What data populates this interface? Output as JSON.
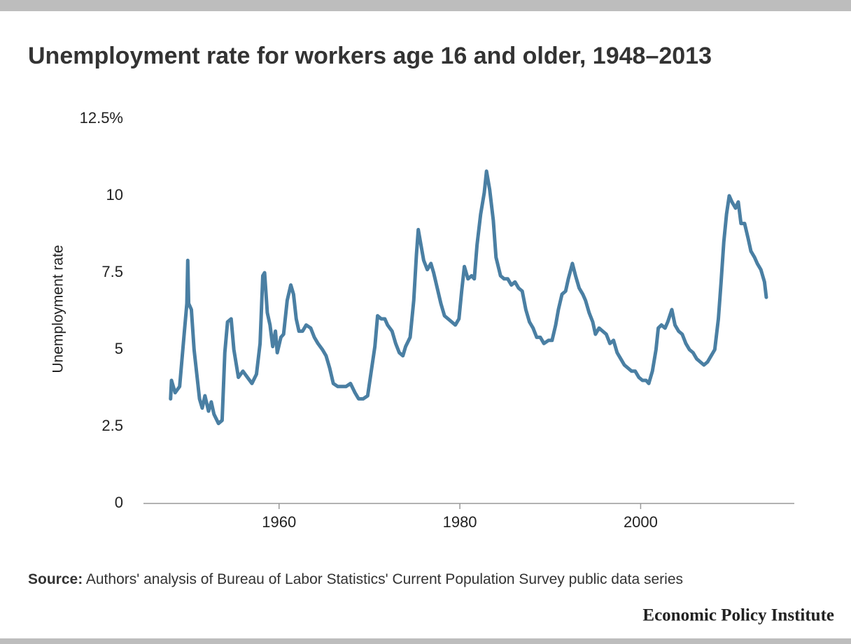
{
  "chart_data": {
    "type": "line",
    "title": "Unemployment rate for workers age 16 and older, 1948–2013",
    "y_label": "Unemployment rate",
    "source_label": "Source:",
    "source": "Authors' analysis of Bureau of Labor Statistics' Current Population Survey public data series",
    "credit": "Economic Policy Institute",
    "color": "#4a7fa3",
    "grid": false,
    "xlim": [
      1945,
      2017
    ],
    "xticks": [
      1960,
      1980,
      2000
    ],
    "ylim": [
      0,
      12.5
    ],
    "yticks": [
      0,
      2.5,
      5,
      7.5,
      10,
      {
        "value": 12.5,
        "label": "12.5%"
      }
    ],
    "x": [
      1948.0,
      1948.1,
      1948.5,
      1949.0,
      1949.5,
      1949.8,
      1949.9,
      1950.0,
      1950.3,
      1950.6,
      1950.9,
      1951.2,
      1951.5,
      1951.8,
      1952.2,
      1952.5,
      1952.8,
      1953.3,
      1953.7,
      1954.0,
      1954.3,
      1954.7,
      1955.0,
      1955.5,
      1956.0,
      1956.5,
      1957.0,
      1957.5,
      1957.9,
      1958.2,
      1958.4,
      1958.7,
      1959.0,
      1959.3,
      1959.6,
      1959.8,
      1960.2,
      1960.5,
      1960.9,
      1961.3,
      1961.6,
      1961.9,
      1962.2,
      1962.6,
      1963.0,
      1963.5,
      1963.9,
      1964.3,
      1964.8,
      1965.2,
      1965.6,
      1966.0,
      1966.5,
      1967.0,
      1967.4,
      1967.9,
      1968.4,
      1968.8,
      1969.3,
      1969.8,
      1970.2,
      1970.6,
      1970.9,
      1971.3,
      1971.7,
      1972.0,
      1972.5,
      1972.9,
      1973.3,
      1973.7,
      1974.0,
      1974.5,
      1974.9,
      1975.2,
      1975.4,
      1975.7,
      1976.0,
      1976.4,
      1976.8,
      1977.1,
      1977.5,
      1977.9,
      1978.3,
      1978.7,
      1979.1,
      1979.5,
      1979.9,
      1980.2,
      1980.5,
      1980.9,
      1981.3,
      1981.6,
      1981.9,
      1982.3,
      1982.7,
      1982.95,
      1983.3,
      1983.7,
      1984.0,
      1984.5,
      1984.9,
      1985.3,
      1985.7,
      1986.1,
      1986.5,
      1986.9,
      1987.3,
      1987.7,
      1988.1,
      1988.5,
      1988.9,
      1989.3,
      1989.8,
      1990.2,
      1990.6,
      1990.9,
      1991.3,
      1991.7,
      1992.0,
      1992.45,
      1992.8,
      1993.2,
      1993.6,
      1993.9,
      1994.3,
      1994.7,
      1995.0,
      1995.4,
      1995.8,
      1996.2,
      1996.6,
      1997.0,
      1997.4,
      1997.8,
      1998.2,
      1998.6,
      1999.0,
      1999.4,
      1999.8,
      2000.2,
      2000.6,
      2000.9,
      2001.3,
      2001.7,
      2001.95,
      2002.3,
      2002.7,
      2003.0,
      2003.45,
      2003.8,
      2004.2,
      2004.6,
      2005.0,
      2005.4,
      2005.8,
      2006.2,
      2006.6,
      2007.0,
      2007.4,
      2007.8,
      2008.2,
      2008.6,
      2008.9,
      2009.2,
      2009.5,
      2009.8,
      2010.1,
      2010.5,
      2010.8,
      2011.1,
      2011.5,
      2011.9,
      2012.2,
      2012.6,
      2012.9,
      2013.3,
      2013.7,
      2013.9
    ],
    "values": [
      3.4,
      4.0,
      3.6,
      3.8,
      5.5,
      6.5,
      7.9,
      6.5,
      6.3,
      5.0,
      4.2,
      3.4,
      3.1,
      3.5,
      3.0,
      3.3,
      2.9,
      2.6,
      2.7,
      4.9,
      5.9,
      6.0,
      5.0,
      4.1,
      4.3,
      4.1,
      3.9,
      4.2,
      5.2,
      7.4,
      7.5,
      6.2,
      5.8,
      5.1,
      5.6,
      4.9,
      5.4,
      5.5,
      6.6,
      7.1,
      6.8,
      6.0,
      5.6,
      5.6,
      5.8,
      5.7,
      5.4,
      5.2,
      5.0,
      4.8,
      4.4,
      3.9,
      3.8,
      3.8,
      3.8,
      3.9,
      3.6,
      3.4,
      3.4,
      3.5,
      4.3,
      5.1,
      6.1,
      6.0,
      6.0,
      5.8,
      5.6,
      5.2,
      4.9,
      4.8,
      5.1,
      5.4,
      6.6,
      8.1,
      8.9,
      8.4,
      7.9,
      7.6,
      7.8,
      7.5,
      7.0,
      6.5,
      6.1,
      6.0,
      5.9,
      5.8,
      6.0,
      6.9,
      7.7,
      7.3,
      7.4,
      7.3,
      8.4,
      9.4,
      10.1,
      10.8,
      10.2,
      9.2,
      8.0,
      7.4,
      7.3,
      7.3,
      7.1,
      7.2,
      7.0,
      6.9,
      6.3,
      5.9,
      5.7,
      5.4,
      5.4,
      5.2,
      5.3,
      5.3,
      5.8,
      6.3,
      6.8,
      6.9,
      7.3,
      7.8,
      7.4,
      7.0,
      6.8,
      6.6,
      6.2,
      5.9,
      5.5,
      5.7,
      5.6,
      5.5,
      5.2,
      5.3,
      4.9,
      4.7,
      4.5,
      4.4,
      4.3,
      4.3,
      4.1,
      4.0,
      4.0,
      3.9,
      4.3,
      5.0,
      5.7,
      5.8,
      5.7,
      5.9,
      6.3,
      5.8,
      5.6,
      5.5,
      5.2,
      5.0,
      4.9,
      4.7,
      4.6,
      4.5,
      4.6,
      4.8,
      5.0,
      6.0,
      7.2,
      8.5,
      9.4,
      10.0,
      9.8,
      9.6,
      9.8,
      9.1,
      9.1,
      8.6,
      8.2,
      8.0,
      7.8,
      7.6,
      7.2,
      6.7
    ]
  }
}
